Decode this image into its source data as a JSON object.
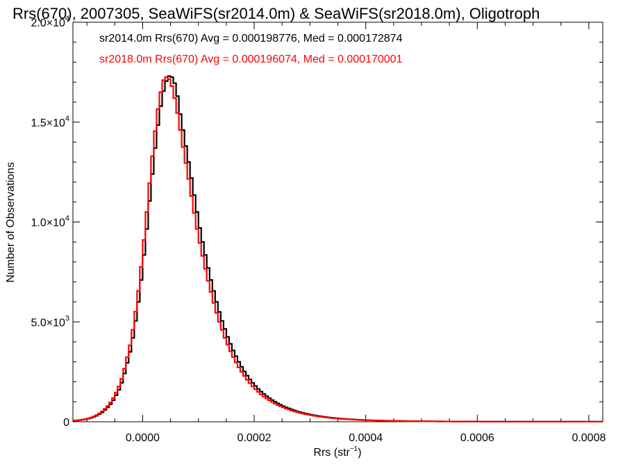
{
  "chart_data": {
    "type": "histogram",
    "title": "Rrs(670), 2007305, SeaWiFS(sr2014.0m) & SeaWiFS(sr2018.0m), Oligotroph",
    "xlabel": "Rrs (str",
    "xlabel_sup": "−1",
    "xlabel_end": ")",
    "ylabel": "Number of Observations",
    "xlim": [
      -0.000125,
      0.000825
    ],
    "ylim": [
      0,
      20000
    ],
    "grid": false,
    "x_ticks": [
      {
        "value": 0.0,
        "label": "0.0000"
      },
      {
        "value": 0.0002,
        "label": "0.0002"
      },
      {
        "value": 0.0004,
        "label": "0.0004"
      },
      {
        "value": 0.0006,
        "label": "0.0006"
      },
      {
        "value": 0.0008,
        "label": "0.0008"
      }
    ],
    "y_ticks": [
      {
        "value": 0,
        "label": "0",
        "exp": ""
      },
      {
        "value": 5000,
        "label": "5.0×10",
        "exp": "3"
      },
      {
        "value": 10000,
        "label": "1.0×10",
        "exp": "4"
      },
      {
        "value": 15000,
        "label": "1.5×10",
        "exp": "4"
      },
      {
        "value": 20000,
        "label": "2.0×10",
        "exp": "4"
      }
    ],
    "bin_width": 5e-06,
    "bin_start": -0.000125,
    "series": [
      {
        "color": "#000000",
        "label": "sr2014.0m Rrs(670) Avg = 0.000198776, Med = 0.000172874",
        "values": [
          55,
          65,
          80,
          100,
          120,
          150,
          190,
          240,
          300,
          380,
          470,
          590,
          720,
          880,
          1080,
          1330,
          1600,
          1950,
          2420,
          2950,
          3500,
          4200,
          5050,
          6000,
          7100,
          8350,
          9650,
          11050,
          12400,
          13700,
          14850,
          15800,
          16550,
          17050,
          17300,
          17250,
          16950,
          16300,
          15400,
          14600,
          13800,
          13000,
          12200,
          11350,
          10500,
          9700,
          9000,
          8350,
          7700,
          7100,
          6550,
          6000,
          5500,
          5050,
          4650,
          4250,
          3900,
          3570,
          3280,
          3000,
          2750,
          2520,
          2310,
          2120,
          1950,
          1790,
          1640,
          1510,
          1390,
          1280,
          1180,
          1085,
          1000,
          920,
          850,
          780,
          720,
          665,
          615,
          565,
          520,
          480,
          445,
          410,
          380,
          350,
          325,
          300,
          278,
          258,
          240,
          222,
          206,
          192,
          178,
          165,
          154,
          143,
          133,
          124,
          116,
          108,
          101,
          94,
          88,
          82,
          77,
          72,
          67,
          63,
          59,
          55,
          52,
          49,
          46,
          43,
          40,
          38,
          36,
          34,
          32,
          30,
          28,
          27,
          25,
          24,
          23,
          22,
          21,
          20,
          19,
          18,
          17,
          16,
          16,
          15,
          14,
          14,
          13,
          13,
          12,
          12,
          11,
          11,
          10,
          10,
          10,
          9,
          9,
          9,
          8,
          8,
          8,
          7,
          7,
          7,
          7,
          6,
          6,
          6,
          6,
          6,
          5,
          5,
          5,
          5,
          5,
          5,
          4,
          4,
          4,
          4,
          4,
          4,
          4,
          4,
          3,
          3,
          3,
          3,
          3,
          3,
          3,
          3,
          3,
          3,
          3,
          3,
          2,
          2
        ]
      },
      {
        "color": "#ff0000",
        "label": "sr2018.0m Rrs(670) Avg = 0.000196074, Med = 0.000170001",
        "values": [
          60,
          70,
          88,
          110,
          132,
          165,
          210,
          265,
          330,
          420,
          520,
          650,
          790,
          970,
          1190,
          1460,
          1760,
          2150,
          2650,
          3230,
          3830,
          4600,
          5520,
          6550,
          7750,
          9100,
          10500,
          11950,
          13300,
          14550,
          15650,
          16500,
          17100,
          17250,
          17150,
          16800,
          16200,
          15450,
          14600,
          13750,
          12950,
          12150,
          11300,
          10450,
          9650,
          8950,
          8300,
          7650,
          7050,
          6500,
          5950,
          5450,
          5000,
          4600,
          4200,
          3860,
          3530,
          3240,
          2970,
          2720,
          2500,
          2290,
          2100,
          1930,
          1770,
          1625,
          1495,
          1375,
          1265,
          1165,
          1075,
          990,
          910,
          840,
          775,
          715,
          660,
          610,
          562,
          518,
          478,
          442,
          408,
          378,
          350,
          323,
          299,
          277,
          257,
          238,
          221,
          205,
          191,
          177,
          165,
          153,
          143,
          133,
          124,
          116,
          108,
          101,
          94,
          88,
          82,
          77,
          72,
          67,
          63,
          59,
          55,
          52,
          49,
          46,
          43,
          40,
          38,
          36,
          34,
          32,
          30,
          28,
          27,
          25,
          24,
          23,
          22,
          21,
          20,
          19,
          18,
          17,
          16,
          16,
          15,
          14,
          14,
          13,
          13,
          12,
          12,
          11,
          11,
          10,
          10,
          10,
          9,
          9,
          9,
          8,
          8,
          8,
          7,
          7,
          7,
          7,
          6,
          6,
          6,
          6,
          6,
          5,
          5,
          5,
          5,
          5,
          5,
          4,
          4,
          4,
          4,
          4,
          4,
          4,
          4,
          3,
          3,
          3,
          3,
          3,
          3,
          3,
          3,
          3,
          3,
          3,
          3,
          2,
          2,
          2
        ]
      }
    ]
  }
}
